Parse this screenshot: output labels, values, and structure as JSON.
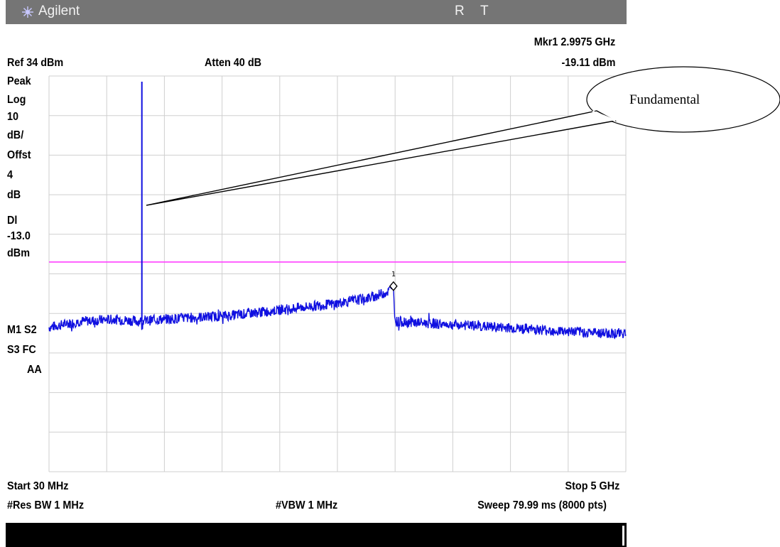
{
  "header": {
    "brand": "Agilent",
    "status_r": "R",
    "status_t": "T",
    "ref_level": "Ref 34 dBm",
    "attenuation": "Atten 40 dB",
    "marker_freq": "Mkr1 2.9975 GHz",
    "marker_level": "-19.11 dBm"
  },
  "side_labels": [
    "Peak",
    "Log",
    "10",
    "dB/",
    "Offst",
    "4",
    "dB",
    "Dl",
    "-13.0",
    "dBm"
  ],
  "mode_labels": [
    "M1  S2",
    "S3  FC",
    "AA"
  ],
  "footer": {
    "start": "Start 30 MHz",
    "stop": "Stop 5 GHz",
    "res_bw": "#Res BW 1 MHz",
    "vbw": "#VBW 1 MHz",
    "sweep": "Sweep 79.99 ms (8000 pts)"
  },
  "annotation": {
    "label": "Fundamental"
  },
  "colors": {
    "trace": "#1010e0",
    "display_line": "#ff40ff",
    "grid": "#cfcfcf",
    "title_bar": "#757575"
  },
  "chart_data": {
    "type": "line",
    "x_unit": "MHz",
    "y_unit": "dBm",
    "xlim": [
      30,
      5000
    ],
    "ylim": [
      -66,
      34
    ],
    "y_div_db": 10,
    "grid": true,
    "display_line_dbm": -13.0,
    "marker": {
      "label": "1",
      "x": 2997.5,
      "y": -19.11
    },
    "fundamental": {
      "x": 830,
      "y": 34
    },
    "series": [
      {
        "points": [
          [
            30,
            -29.5
          ],
          [
            300,
            -28
          ],
          [
            600,
            -27.5
          ],
          [
            800,
            -28
          ],
          [
            1000,
            -27.5
          ],
          [
            1300,
            -27
          ],
          [
            1600,
            -26.5
          ],
          [
            1900,
            -25.5
          ],
          [
            2200,
            -24.5
          ],
          [
            2500,
            -23.5
          ],
          [
            2800,
            -22
          ],
          [
            2950,
            -20.5
          ],
          [
            2997,
            -19.1
          ],
          [
            3010,
            -28
          ],
          [
            3300,
            -28.5
          ],
          [
            3600,
            -29
          ],
          [
            3900,
            -29.5
          ],
          [
            4200,
            -30
          ],
          [
            4500,
            -30.5
          ],
          [
            4800,
            -31
          ],
          [
            5000,
            -31
          ]
        ]
      }
    ]
  }
}
